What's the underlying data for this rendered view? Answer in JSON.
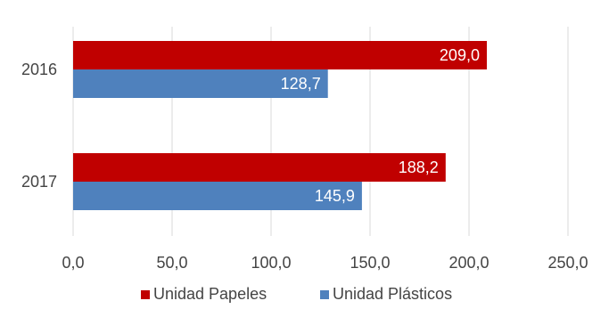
{
  "chart_data": {
    "type": "bar",
    "orientation": "horizontal",
    "categories": [
      "2016",
      "2017"
    ],
    "series": [
      {
        "name": "Unidad Papeles",
        "color": "#c00000",
        "values": [
          209.0,
          188.2
        ],
        "labels": [
          "209,0",
          "188,2"
        ]
      },
      {
        "name": "Unidad Plásticos",
        "color": "#4f81bd",
        "values": [
          128.7,
          145.9
        ],
        "labels": [
          "128,7",
          "145,9"
        ]
      }
    ],
    "xlim": [
      0,
      250
    ],
    "xticks": [
      0,
      50,
      100,
      150,
      200,
      250
    ],
    "xtick_labels": [
      "0,0",
      "50,0",
      "100,0",
      "150,0",
      "200,0",
      "250,0"
    ],
    "grid": true,
    "legend": "bottom",
    "title": "",
    "xlabel": "",
    "ylabel": ""
  }
}
